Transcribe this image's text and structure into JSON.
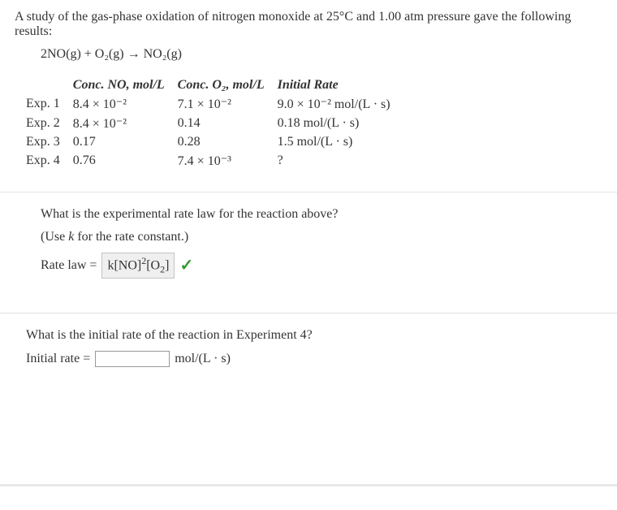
{
  "intro": "A study of the gas-phase oxidation of nitrogen monoxide at 25°C and 1.00 atm pressure gave the following results:",
  "equation": "2NO(g) + O₂(g) → NO₂(g)",
  "table": {
    "headers": [
      "",
      "Conc. NO, mol/L",
      "Conc. O₂, mol/L",
      "Initial Rate"
    ],
    "rows": [
      [
        "Exp. 1",
        "8.4 × 10⁻²",
        "7.1 × 10⁻²",
        "9.0 × 10⁻² mol/(L · s)"
      ],
      [
        "Exp. 2",
        "8.4 × 10⁻²",
        "0.14",
        "0.18 mol/(L · s)"
      ],
      [
        "Exp. 3",
        "0.17",
        "0.28",
        "1.5 mol/(L · s)"
      ],
      [
        "Exp. 4",
        "0.76",
        "7.4 × 10⁻³",
        "?"
      ]
    ]
  },
  "q1": {
    "prompt": "What is the experimental rate law for the reaction above?",
    "hint": "(Use k for the rate constant.)",
    "label": "Rate law =",
    "answer": "k[NO]²[O₂]"
  },
  "q2": {
    "prompt": "What is the initial rate of the reaction in Experiment 4?",
    "label": "Initial rate =",
    "unit": " mol/(L · s)"
  }
}
